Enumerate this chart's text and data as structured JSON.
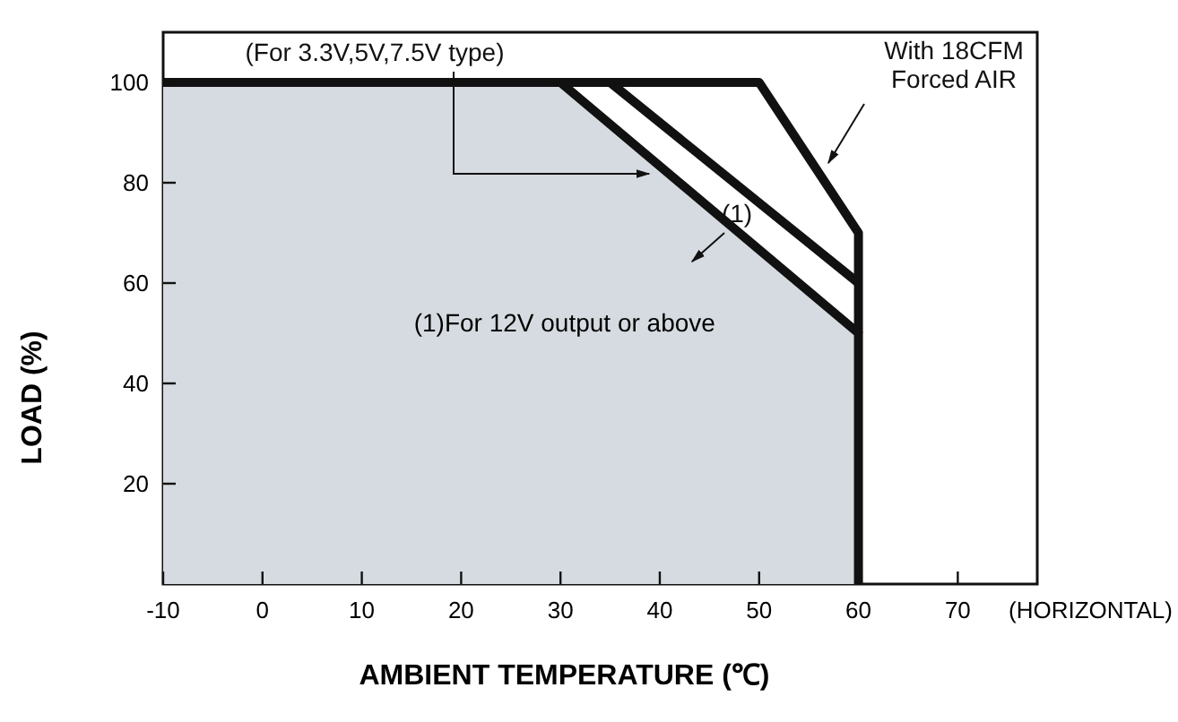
{
  "chart_data": {
    "type": "line",
    "xlabel": "AMBIENT TEMPERATURE (℃)",
    "ylabel": "LOAD (%)",
    "xlim": [
      -10,
      78
    ],
    "ylim": [
      0,
      110
    ],
    "xticks": [
      -10,
      0,
      10,
      20,
      30,
      40,
      50,
      60,
      70
    ],
    "yticks": [
      20,
      40,
      60,
      80,
      100
    ],
    "grid": false,
    "legend": false,
    "series": [
      {
        "name": "(For 3.3V,5V,7.5V type)",
        "type": "area",
        "color": "#d5dbe0",
        "x": [
          -10,
          30,
          60,
          60
        ],
        "values": [
          100,
          100,
          50,
          0
        ]
      },
      {
        "name": "(1)",
        "color": "#111111",
        "x": [
          35,
          60
        ],
        "values": [
          100,
          60
        ]
      },
      {
        "name": "With 18CFM\nForced AIR",
        "color": "#111111",
        "x": [
          30,
          50,
          60,
          60
        ],
        "values": [
          100,
          100,
          70,
          50
        ]
      }
    ],
    "annotations": [
      "(1)For 12V output or above",
      "(HORIZONTAL)"
    ]
  }
}
